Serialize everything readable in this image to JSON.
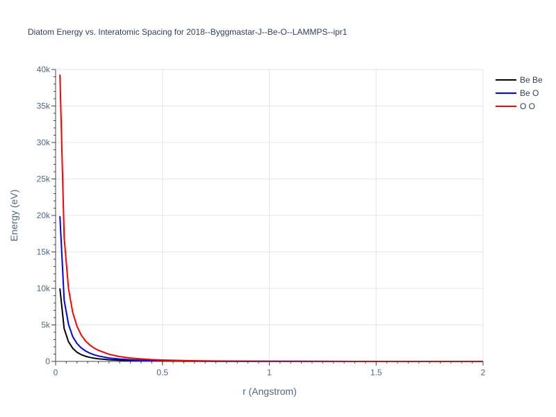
{
  "chart_data": {
    "type": "line",
    "title": "Diatom Energy vs. Interatomic Spacing for 2018--Byggmastar-J--Be-O--LAMMPS--ipr1",
    "xlabel": "r (Angstrom)",
    "ylabel": "Energy (eV)",
    "xlim": [
      0,
      2
    ],
    "ylim": [
      0,
      40000
    ],
    "x_ticks": [
      0,
      0.5,
      1,
      1.5,
      2
    ],
    "x_tick_labels": [
      "0",
      "0.5",
      "1",
      "1.5",
      "2"
    ],
    "y_ticks": [
      0,
      5000,
      10000,
      15000,
      20000,
      25000,
      30000,
      35000,
      40000
    ],
    "y_tick_labels": [
      "0",
      "5k",
      "10k",
      "15k",
      "20k",
      "25k",
      "30k",
      "35k",
      "40k"
    ],
    "grid": true,
    "legend_position": "top-right",
    "series": [
      {
        "name": "Be Be",
        "color": "#000000",
        "x": [
          0.02,
          0.04,
          0.06,
          0.08,
          0.1,
          0.12,
          0.14,
          0.16,
          0.18,
          0.2,
          0.25,
          0.3,
          0.35,
          0.4,
          0.45,
          0.5,
          0.6,
          0.7,
          0.8,
          1.0,
          1.2,
          1.5,
          2.0
        ],
        "y": [
          10000,
          4500,
          2700,
          1800,
          1250,
          920,
          700,
          550,
          440,
          360,
          230,
          155,
          110,
          80,
          60,
          45,
          28,
          18,
          12,
          6,
          3,
          1,
          0
        ]
      },
      {
        "name": "Be O",
        "color": "#0000ff",
        "x": [
          0.02,
          0.04,
          0.06,
          0.08,
          0.1,
          0.12,
          0.14,
          0.16,
          0.18,
          0.2,
          0.25,
          0.3,
          0.35,
          0.4,
          0.45,
          0.5,
          0.6,
          0.7,
          0.8,
          1.0,
          1.2,
          1.5,
          2.0
        ],
        "y": [
          19900,
          8400,
          5100,
          3400,
          2450,
          1850,
          1430,
          1130,
          910,
          740,
          470,
          320,
          225,
          165,
          120,
          90,
          55,
          35,
          22,
          10,
          5,
          2,
          0
        ]
      },
      {
        "name": "O O",
        "color": "#ff0000",
        "x": [
          0.02,
          0.04,
          0.06,
          0.08,
          0.1,
          0.12,
          0.14,
          0.16,
          0.18,
          0.2,
          0.25,
          0.3,
          0.35,
          0.4,
          0.45,
          0.5,
          0.6,
          0.7,
          0.8,
          1.0,
          1.2,
          1.5,
          2.0
        ],
        "y": [
          39300,
          17000,
          10000,
          6700,
          4800,
          3600,
          2800,
          2250,
          1850,
          1520,
          980,
          660,
          470,
          340,
          250,
          190,
          115,
          72,
          47,
          21,
          10,
          4,
          1
        ]
      }
    ]
  }
}
